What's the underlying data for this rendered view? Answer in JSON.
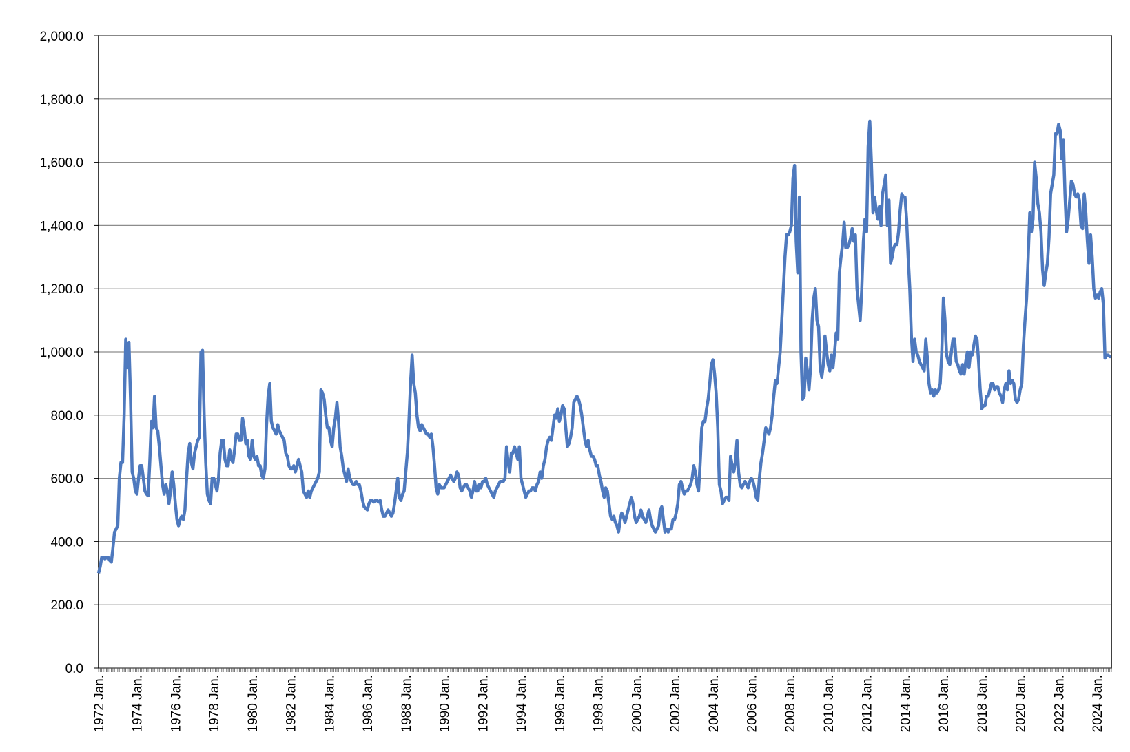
{
  "chart_data": {
    "type": "line",
    "color": "#4e79be",
    "grid": true,
    "ylim": [
      0,
      2000
    ],
    "yticks": [
      {
        "value": 0,
        "label": "0.0"
      },
      {
        "value": 200,
        "label": "200.0"
      },
      {
        "value": 400,
        "label": "400.0"
      },
      {
        "value": 600,
        "label": "600.0"
      },
      {
        "value": 800,
        "label": "800.0"
      },
      {
        "value": 1000,
        "label": "1,000.0"
      },
      {
        "value": 1200,
        "label": "1,200.0"
      },
      {
        "value": 1400,
        "label": "1,400.0"
      },
      {
        "value": 1600,
        "label": "1,600.0"
      },
      {
        "value": 1800,
        "label": "1,800.0"
      },
      {
        "value": 2000,
        "label": "2,000.0"
      }
    ],
    "categories": [
      "1972 Jan.",
      null,
      null,
      null,
      null,
      null,
      null,
      null,
      null,
      null,
      null,
      null,
      null,
      null,
      null,
      null,
      null,
      null,
      null,
      null,
      null,
      null,
      null,
      null,
      "1974 Jan.",
      null,
      null,
      null,
      null,
      null,
      null,
      null,
      null,
      null,
      null,
      null,
      null,
      null,
      null,
      null,
      null,
      null,
      null,
      null,
      null,
      null,
      null,
      null,
      "1976 Jan.",
      null,
      null,
      null,
      null,
      null,
      null,
      null,
      null,
      null,
      null,
      null,
      null,
      null,
      null,
      null,
      null,
      null,
      null,
      null,
      null,
      null,
      null,
      null,
      "1978 Jan.",
      null,
      null,
      null,
      null,
      null,
      null,
      null,
      null,
      null,
      null,
      null,
      null,
      null,
      null,
      null,
      null,
      null,
      null,
      null,
      null,
      null,
      null,
      null,
      "1980 Jan.",
      null,
      null,
      null,
      null,
      null,
      null,
      null,
      null,
      null,
      null,
      null,
      null,
      null,
      null,
      null,
      null,
      null,
      null,
      null,
      null,
      null,
      null,
      null,
      "1982 Jan.",
      null,
      null,
      null,
      null,
      null,
      null,
      null,
      null,
      null,
      null,
      null,
      null,
      null,
      null,
      null,
      null,
      null,
      null,
      null,
      null,
      null,
      null,
      null,
      "1984 Jan.",
      null,
      null,
      null,
      null,
      null,
      null,
      null,
      null,
      null,
      null,
      null,
      null,
      null,
      null,
      null,
      null,
      null,
      null,
      null,
      null,
      null,
      null,
      null,
      "1986 Jan.",
      null,
      null,
      null,
      null,
      null,
      null,
      null,
      null,
      null,
      null,
      null,
      null,
      null,
      null,
      null,
      null,
      null,
      null,
      null,
      null,
      null,
      null,
      null,
      "1988 Jan.",
      null,
      null,
      null,
      null,
      null,
      null,
      null,
      null,
      null,
      null,
      null,
      null,
      null,
      null,
      null,
      null,
      null,
      null,
      null,
      null,
      null,
      null,
      null,
      "1990 Jan.",
      null,
      null,
      null,
      null,
      null,
      null,
      null,
      null,
      null,
      null,
      null,
      null,
      null,
      null,
      null,
      null,
      null,
      null,
      null,
      null,
      null,
      null,
      null,
      "1992 Jan.",
      null,
      null,
      null,
      null,
      null,
      null,
      null,
      null,
      null,
      null,
      null,
      null,
      null,
      null,
      null,
      null,
      null,
      null,
      null,
      null,
      null,
      null,
      null,
      "1994 Jan.",
      null,
      null,
      null,
      null,
      null,
      null,
      null,
      null,
      null,
      null,
      null,
      null,
      null,
      null,
      null,
      null,
      null,
      null,
      null,
      null,
      null,
      null,
      null,
      "1996 Jan.",
      null,
      null,
      null,
      null,
      null,
      null,
      null,
      null,
      null,
      null,
      null,
      null,
      null,
      null,
      null,
      null,
      null,
      null,
      null,
      null,
      null,
      null,
      null,
      "1998 Jan.",
      null,
      null,
      null,
      null,
      null,
      null,
      null,
      null,
      null,
      null,
      null,
      null,
      null,
      null,
      null,
      null,
      null,
      null,
      null,
      null,
      null,
      null,
      null,
      "2000 Jan.",
      null,
      null,
      null,
      null,
      null,
      null,
      null,
      null,
      null,
      null,
      null,
      null,
      null,
      null,
      null,
      null,
      null,
      null,
      null,
      null,
      null,
      null,
      null,
      "2002 Jan.",
      null,
      null,
      null,
      null,
      null,
      null,
      null,
      null,
      null,
      null,
      null,
      null,
      null,
      null,
      null,
      null,
      null,
      null,
      null,
      null,
      null,
      null,
      null,
      "2004 Jan.",
      null,
      null,
      null,
      null,
      null,
      null,
      null,
      null,
      null,
      null,
      null,
      null,
      null,
      null,
      null,
      null,
      null,
      null,
      null,
      null,
      null,
      null,
      null,
      "2006 Jan.",
      null,
      null,
      null,
      null,
      null,
      null,
      null,
      null,
      null,
      null,
      null,
      null,
      null,
      null,
      null,
      null,
      null,
      null,
      null,
      null,
      null,
      null,
      null,
      "2008 Jan.",
      null,
      null,
      null,
      null,
      null,
      null,
      null,
      null,
      null,
      null,
      null,
      null,
      null,
      null,
      null,
      null,
      null,
      null,
      null,
      null,
      null,
      null,
      null,
      "2010 Jan.",
      null,
      null,
      null,
      null,
      null,
      null,
      null,
      null,
      null,
      null,
      null,
      null,
      null,
      null,
      null,
      null,
      null,
      null,
      null,
      null,
      null,
      null,
      null,
      "2012 Jan.",
      null,
      null,
      null,
      null,
      null,
      null,
      null,
      null,
      null,
      null,
      null,
      null,
      null,
      null,
      null,
      null,
      null,
      null,
      null,
      null,
      null,
      null,
      null,
      "2014 Jan.",
      null,
      null,
      null,
      null,
      null,
      null,
      null,
      null,
      null,
      null,
      null,
      null,
      null,
      null,
      null,
      null,
      null,
      null,
      null,
      null,
      null,
      null,
      null,
      "2016 Jan.",
      null,
      null,
      null,
      null,
      null,
      null,
      null,
      null,
      null,
      null,
      null,
      null,
      null,
      null,
      null,
      null,
      null,
      null,
      null,
      null,
      null,
      null,
      null,
      "2018 Jan.",
      null,
      null,
      null,
      null,
      null,
      null,
      null,
      null,
      null,
      null,
      null,
      null,
      null,
      null,
      null,
      null,
      null,
      null,
      null,
      null,
      null,
      null,
      null,
      "2020 Jan.",
      null,
      null,
      null,
      null,
      null,
      null,
      null,
      null,
      null,
      null,
      null,
      null,
      null,
      null,
      null,
      null,
      null,
      null,
      null,
      null,
      null,
      null,
      null,
      "2022 Jan.",
      null,
      null,
      null,
      null,
      null,
      null,
      null,
      null,
      null,
      null,
      null,
      null,
      null,
      null,
      null,
      null,
      null,
      null,
      null,
      null,
      null,
      null,
      null,
      "2024 Jan.",
      null,
      null,
      null,
      null,
      null,
      null,
      null,
      null,
      null
    ],
    "values": [
      300,
      320,
      350,
      350,
      345,
      350,
      350,
      340,
      335,
      380,
      430,
      440,
      450,
      600,
      650,
      650,
      800,
      1040,
      950,
      1030,
      850,
      620,
      600,
      560,
      550,
      600,
      640,
      640,
      600,
      560,
      550,
      545,
      650,
      780,
      760,
      860,
      760,
      750,
      700,
      640,
      580,
      550,
      580,
      560,
      520,
      560,
      620,
      580,
      520,
      470,
      450,
      470,
      480,
      470,
      500,
      600,
      680,
      710,
      650,
      630,
      680,
      700,
      720,
      730,
      1000,
      1005,
      800,
      650,
      550,
      530,
      520,
      600,
      600,
      580,
      560,
      600,
      680,
      720,
      720,
      660,
      640,
      640,
      690,
      660,
      650,
      690,
      740,
      740,
      720,
      720,
      790,
      760,
      710,
      720,
      670,
      660,
      720,
      670,
      660,
      670,
      640,
      640,
      610,
      600,
      630,
      770,
      860,
      900,
      780,
      760,
      750,
      740,
      770,
      750,
      740,
      730,
      720,
      680,
      670,
      640,
      630,
      630,
      640,
      620,
      640,
      660,
      640,
      620,
      560,
      550,
      540,
      560,
      540,
      560,
      570,
      580,
      590,
      600,
      620,
      880,
      870,
      850,
      800,
      760,
      760,
      720,
      700,
      760,
      790,
      840,
      780,
      700,
      670,
      630,
      610,
      590,
      630,
      600,
      590,
      580,
      580,
      590,
      580,
      580,
      560,
      530,
      510,
      505,
      500,
      520,
      530,
      530,
      525,
      530,
      530,
      525,
      530,
      500,
      480,
      480,
      490,
      500,
      490,
      480,
      490,
      520,
      560,
      600,
      540,
      530,
      550,
      560,
      620,
      680,
      780,
      900,
      990,
      900,
      870,
      800,
      760,
      750,
      770,
      760,
      750,
      740,
      740,
      730,
      740,
      700,
      640,
      570,
      550,
      580,
      570,
      570,
      570,
      580,
      590,
      600,
      610,
      600,
      590,
      600,
      620,
      610,
      570,
      560,
      570,
      580,
      580,
      570,
      560,
      540,
      560,
      590,
      560,
      560,
      580,
      570,
      590,
      590,
      600,
      580,
      570,
      560,
      550,
      540,
      560,
      570,
      580,
      590,
      590,
      590,
      600,
      700,
      650,
      620,
      680,
      680,
      700,
      680,
      660,
      700,
      600,
      580,
      560,
      540,
      550,
      560,
      560,
      570,
      570,
      560,
      580,
      590,
      620,
      600,
      640,
      660,
      700,
      720,
      730,
      720,
      760,
      800,
      790,
      820,
      780,
      800,
      830,
      820,
      760,
      700,
      710,
      730,
      760,
      840,
      850,
      860,
      850,
      830,
      800,
      760,
      720,
      700,
      720,
      690,
      670,
      670,
      660,
      640,
      640,
      610,
      590,
      560,
      540,
      570,
      560,
      520,
      480,
      470,
      480,
      460,
      450,
      430,
      470,
      490,
      480,
      460,
      480,
      500,
      520,
      540,
      520,
      480,
      460,
      470,
      480,
      500,
      480,
      470,
      460,
      480,
      500,
      470,
      450,
      440,
      430,
      440,
      450,
      500,
      510,
      470,
      430,
      440,
      430,
      440,
      440,
      470,
      470,
      490,
      520,
      580,
      590,
      570,
      550,
      560,
      560,
      570,
      580,
      600,
      640,
      620,
      580,
      560,
      650,
      760,
      780,
      780,
      820,
      850,
      900,
      960,
      975,
      930,
      870,
      760,
      580,
      560,
      520,
      530,
      540,
      540,
      530,
      670,
      640,
      620,
      650,
      720,
      620,
      580,
      570,
      580,
      590,
      580,
      570,
      590,
      600,
      590,
      570,
      540,
      530,
      600,
      650,
      680,
      720,
      760,
      750,
      740,
      760,
      800,
      860,
      910,
      900,
      950,
      1000,
      1100,
      1200,
      1300,
      1370,
      1370,
      1380,
      1400,
      1550,
      1590,
      1350,
      1250,
      1490,
      1000,
      850,
      860,
      980,
      940,
      880,
      950,
      1100,
      1170,
      1200,
      1100,
      1080,
      950,
      920,
      960,
      1050,
      1000,
      960,
      940,
      990,
      950,
      1000,
      1060,
      1040,
      1250,
      1300,
      1340,
      1410,
      1330,
      1330,
      1340,
      1360,
      1390,
      1350,
      1370,
      1200,
      1150,
      1100,
      1200,
      1350,
      1420,
      1380,
      1650,
      1730,
      1600,
      1440,
      1490,
      1450,
      1420,
      1460,
      1400,
      1500,
      1530,
      1560,
      1400,
      1480,
      1280,
      1300,
      1330,
      1340,
      1340,
      1380,
      1450,
      1500,
      1490,
      1490,
      1420,
      1300,
      1200,
      1050,
      970,
      1040,
      1000,
      990,
      970,
      960,
      950,
      940,
      1040,
      980,
      900,
      870,
      880,
      860,
      880,
      870,
      880,
      900,
      1000,
      1170,
      1100,
      990,
      970,
      960,
      1000,
      1040,
      1040,
      970,
      960,
      940,
      930,
      960,
      930,
      970,
      1000,
      950,
      1000,
      990,
      1020,
      1050,
      1040,
      970,
      880,
      820,
      830,
      830,
      860,
      860,
      880,
      900,
      900,
      880,
      890,
      890,
      870,
      860,
      840,
      880,
      900,
      880,
      940,
      900,
      910,
      900,
      850,
      840,
      850,
      880,
      900,
      1020,
      1100,
      1170,
      1300,
      1440,
      1380,
      1420,
      1600,
      1550,
      1470,
      1440,
      1380,
      1260,
      1210,
      1250,
      1280,
      1360,
      1500,
      1530,
      1560,
      1690,
      1690,
      1720,
      1700,
      1610,
      1670,
      1500,
      1380,
      1420,
      1480,
      1540,
      1530,
      1500,
      1490,
      1500,
      1480,
      1400,
      1390,
      1500,
      1440,
      1350,
      1280,
      1370,
      1300,
      1200,
      1170,
      1180,
      1170,
      1190,
      1200,
      1150,
      980,
      990,
      990,
      985,
      985
    ]
  }
}
